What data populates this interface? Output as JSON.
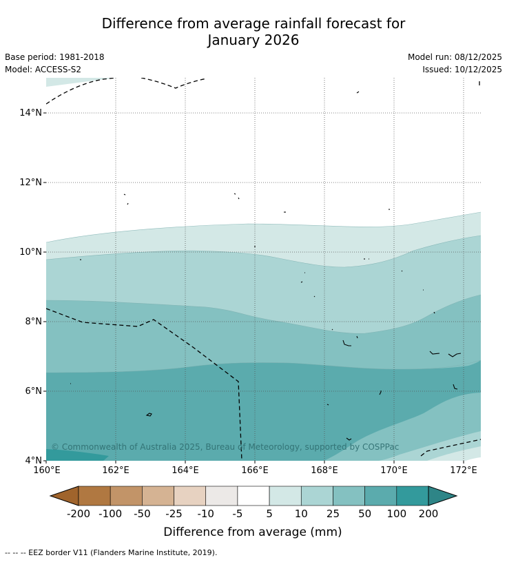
{
  "title": {
    "line1": "Difference from average rainfall forecast for",
    "line2": "January 2026"
  },
  "meta": {
    "base_period": "Base period: 1981-2018",
    "model": "Model: ACCESS-S2",
    "model_run": "Model run: 08/12/2025",
    "issued": "Issued: 10/12/2025"
  },
  "map": {
    "lon_labels": [
      "160°E",
      "162°E",
      "164°E",
      "166°E",
      "168°E",
      "170°E",
      "172°E"
    ],
    "lat_labels": [
      "14°N",
      "12°N",
      "10°N",
      "8°N",
      "6°N",
      "4°N"
    ],
    "copyright": "© Commonwealth of Australia 2025, Bureau of Meteorology, supported by COSPPac"
  },
  "colorbar": {
    "tick_labels": [
      "-200",
      "-100",
      "-50",
      "-25",
      "-10",
      "-5",
      "5",
      "10",
      "25",
      "50",
      "100",
      "200"
    ],
    "colors": [
      "#a0642c",
      "#b07841",
      "#c29468",
      "#d5b393",
      "#e7d2c1",
      "#ece9e7",
      "#ffffff",
      "#d3e8e6",
      "#abd5d4",
      "#84c1c1",
      "#5babad",
      "#339a9c",
      "#2e8587"
    ],
    "label": "Difference from average (mm)"
  },
  "footnote": "--  --  -- EEZ border V11 (Flanders Marine Institute, 2019)."
}
